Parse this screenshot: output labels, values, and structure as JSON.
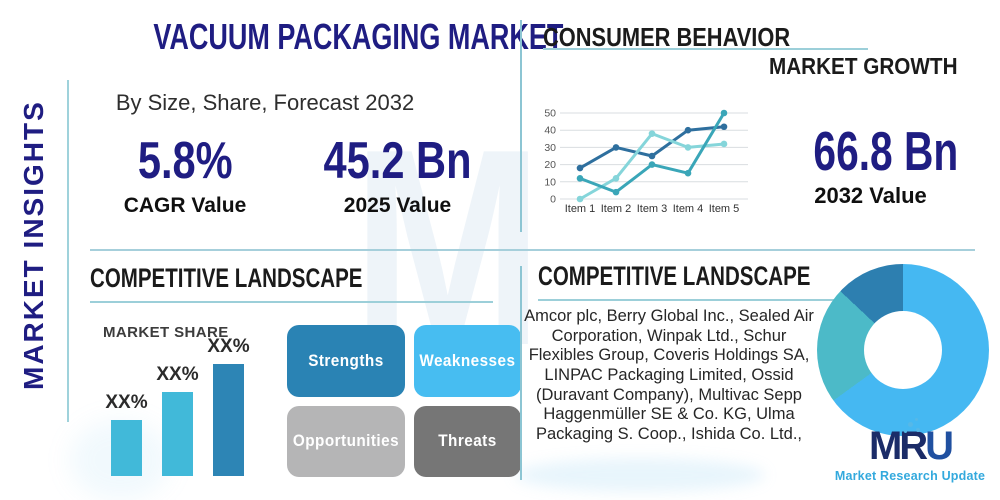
{
  "brand": {
    "watermark_letter": "M",
    "logo": {
      "mr": "MR",
      "u": "U",
      "tagline": "Market Research Update"
    }
  },
  "left_rail": {
    "vertical_label": "MARKET INSIGHTS"
  },
  "header": {
    "title": "VACUUM PACKAGING MARKET",
    "subtitle": "By Size, Share, Forecast 2032",
    "stats": [
      {
        "value": "5.8%",
        "label": "CAGR Value"
      },
      {
        "value": "45.2 Bn",
        "label": "2025 Value"
      }
    ]
  },
  "consumer_behavior": {
    "title": "CONSUMER BEHAVIOR",
    "subtitle": "MARKET GROWTH",
    "stat": {
      "value": "66.8 Bn",
      "label": "2032 Value"
    }
  },
  "competitive_left": {
    "title": "COMPETITIVE LANDSCAPE",
    "market_share_label": "MARKET SHARE",
    "swot": [
      {
        "label": "Strengths",
        "color": "#2a83b4"
      },
      {
        "label": "Weaknesses",
        "color": "#47bdf1"
      },
      {
        "label": "Opportunities",
        "color": "#b5b5b6"
      },
      {
        "label": "Threats",
        "color": "#767676"
      }
    ]
  },
  "competitive_right": {
    "title": "COMPETITIVE LANDSCAPE",
    "companies": "Amcor plc, Berry Global Inc., Sealed Air Corporation, Winpak Ltd., Schur Flexibles Group, Coveris Holdings SA, LINPAC Packaging Limited, Ossid (Duravant Company), Multivac Sepp Haggenmüller SE & Co. KG, Ulma Packaging S. Coop., Ishida Co. Ltd.,"
  },
  "colors": {
    "navy": "#1f1d82",
    "divider_teal": "#8cc5d3",
    "underline_teal": "#9ccfd9"
  },
  "chart_data": [
    {
      "type": "line",
      "title": "CONSUMER BEHAVIOR / MARKET GROWTH",
      "categories": [
        "Item 1",
        "Item 2",
        "Item 3",
        "Item 4",
        "Item 5"
      ],
      "series": [
        {
          "name": "series-dark-blue",
          "color": "#2e6f9e",
          "values": [
            18,
            30,
            25,
            40,
            42
          ]
        },
        {
          "name": "series-teal",
          "color": "#3aa6b8",
          "values": [
            12,
            4,
            20,
            15,
            50
          ]
        },
        {
          "name": "series-light-cyan",
          "color": "#85d5da",
          "values": [
            0,
            12,
            38,
            30,
            32
          ]
        }
      ],
      "ylim": [
        0,
        50
      ],
      "yticks": [
        0,
        10,
        20,
        30,
        40,
        50
      ],
      "grid": true,
      "legend": false
    },
    {
      "type": "bar",
      "title": "MARKET SHARE",
      "categories": [
        "",
        "",
        ""
      ],
      "values": [
        20,
        30,
        40
      ],
      "labels": [
        "XX%",
        "XX%",
        "XX%"
      ],
      "colors": [
        "#41b9d9",
        "#41b9d9",
        "#2d85b5"
      ],
      "ylabel": "",
      "xlabel": ""
    },
    {
      "type": "pie",
      "title": "",
      "donut": true,
      "slices": [
        {
          "name": "slice-light-blue",
          "percent": 65,
          "color": "#45b8f2"
        },
        {
          "name": "slice-teal",
          "percent": 22,
          "color": "#4cbac8"
        },
        {
          "name": "slice-dark-blue",
          "percent": 13,
          "color": "#2d7fb0"
        }
      ],
      "legend": false
    }
  ]
}
